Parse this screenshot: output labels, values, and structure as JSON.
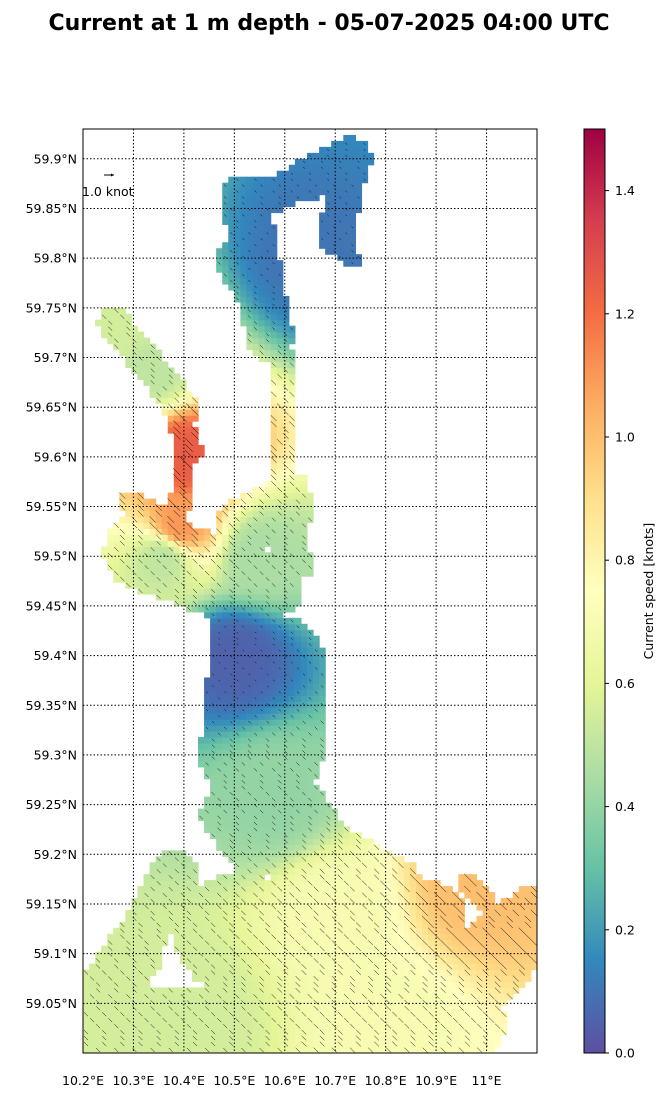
{
  "chart_data": {
    "type": "heatmap",
    "title": "Current at 1 m depth - 05-07-2025 04:00 UTC",
    "x_ticks": [
      "10.2°E",
      "10.3°E",
      "10.4°E",
      "10.5°E",
      "10.6°E",
      "10.7°E",
      "10.8°E",
      "10.9°E",
      "11°E"
    ],
    "x_tick_values": [
      10.2,
      10.3,
      10.4,
      10.5,
      10.6,
      10.7,
      10.8,
      10.9,
      11.0
    ],
    "y_ticks": [
      "59.05°N",
      "59.1°N",
      "59.15°N",
      "59.2°N",
      "59.25°N",
      "59.3°N",
      "59.35°N",
      "59.4°N",
      "59.45°N",
      "59.5°N",
      "59.55°N",
      "59.6°N",
      "59.65°N",
      "59.7°N",
      "59.75°N",
      "59.8°N",
      "59.85°N",
      "59.9°N"
    ],
    "y_tick_values": [
      59.05,
      59.1,
      59.15,
      59.2,
      59.25,
      59.3,
      59.35,
      59.4,
      59.45,
      59.5,
      59.55,
      59.6,
      59.65,
      59.7,
      59.75,
      59.8,
      59.85,
      59.9
    ],
    "xlim": [
      10.2,
      11.1
    ],
    "ylim": [
      59.0,
      59.93
    ],
    "grid": true,
    "reference_arrow_label": "1.0 knot",
    "colorbar": {
      "label": "Current speed [knots]",
      "range": [
        0.0,
        1.5
      ],
      "ticks": [
        "0.0",
        "0.2",
        "0.4",
        "0.6",
        "0.8",
        "1.0",
        "1.2",
        "1.4"
      ],
      "tick_values": [
        0.0,
        0.2,
        0.4,
        0.6,
        0.8,
        1.0,
        1.2,
        1.4
      ],
      "colormap": "Spectral_r",
      "colors": [
        "#5e4fa2",
        "#3288bd",
        "#66c2a5",
        "#abdda4",
        "#e6f598",
        "#ffffbf",
        "#fee08b",
        "#fdae61",
        "#f46d43",
        "#d53e4f",
        "#9e0142"
      ]
    },
    "speed_field": [
      {
        "lon": 10.27,
        "lat": 59.72,
        "speed": 0.55
      },
      {
        "lon": 10.33,
        "lat": 59.69,
        "speed": 0.5
      },
      {
        "lon": 10.405,
        "lat": 59.6,
        "speed": 1.25
      },
      {
        "lon": 10.39,
        "lat": 59.53,
        "speed": 1.1
      },
      {
        "lon": 10.36,
        "lat": 59.5,
        "speed": 0.5
      },
      {
        "lon": 10.55,
        "lat": 59.5,
        "speed": 0.45
      },
      {
        "lon": 10.58,
        "lat": 59.26,
        "speed": 0.4
      },
      {
        "lon": 10.7,
        "lat": 59.14,
        "speed": 0.7
      },
      {
        "lon": 10.8,
        "lat": 59.03,
        "speed": 0.7
      },
      {
        "lon": 10.42,
        "lat": 59.04,
        "speed": 0.55
      },
      {
        "lon": 10.98,
        "lat": 59.17,
        "speed": 1.0
      },
      {
        "lon": 10.65,
        "lat": 59.8,
        "speed": 0.1
      },
      {
        "lon": 10.5,
        "lat": 59.4,
        "speed": 0.05
      }
    ]
  }
}
